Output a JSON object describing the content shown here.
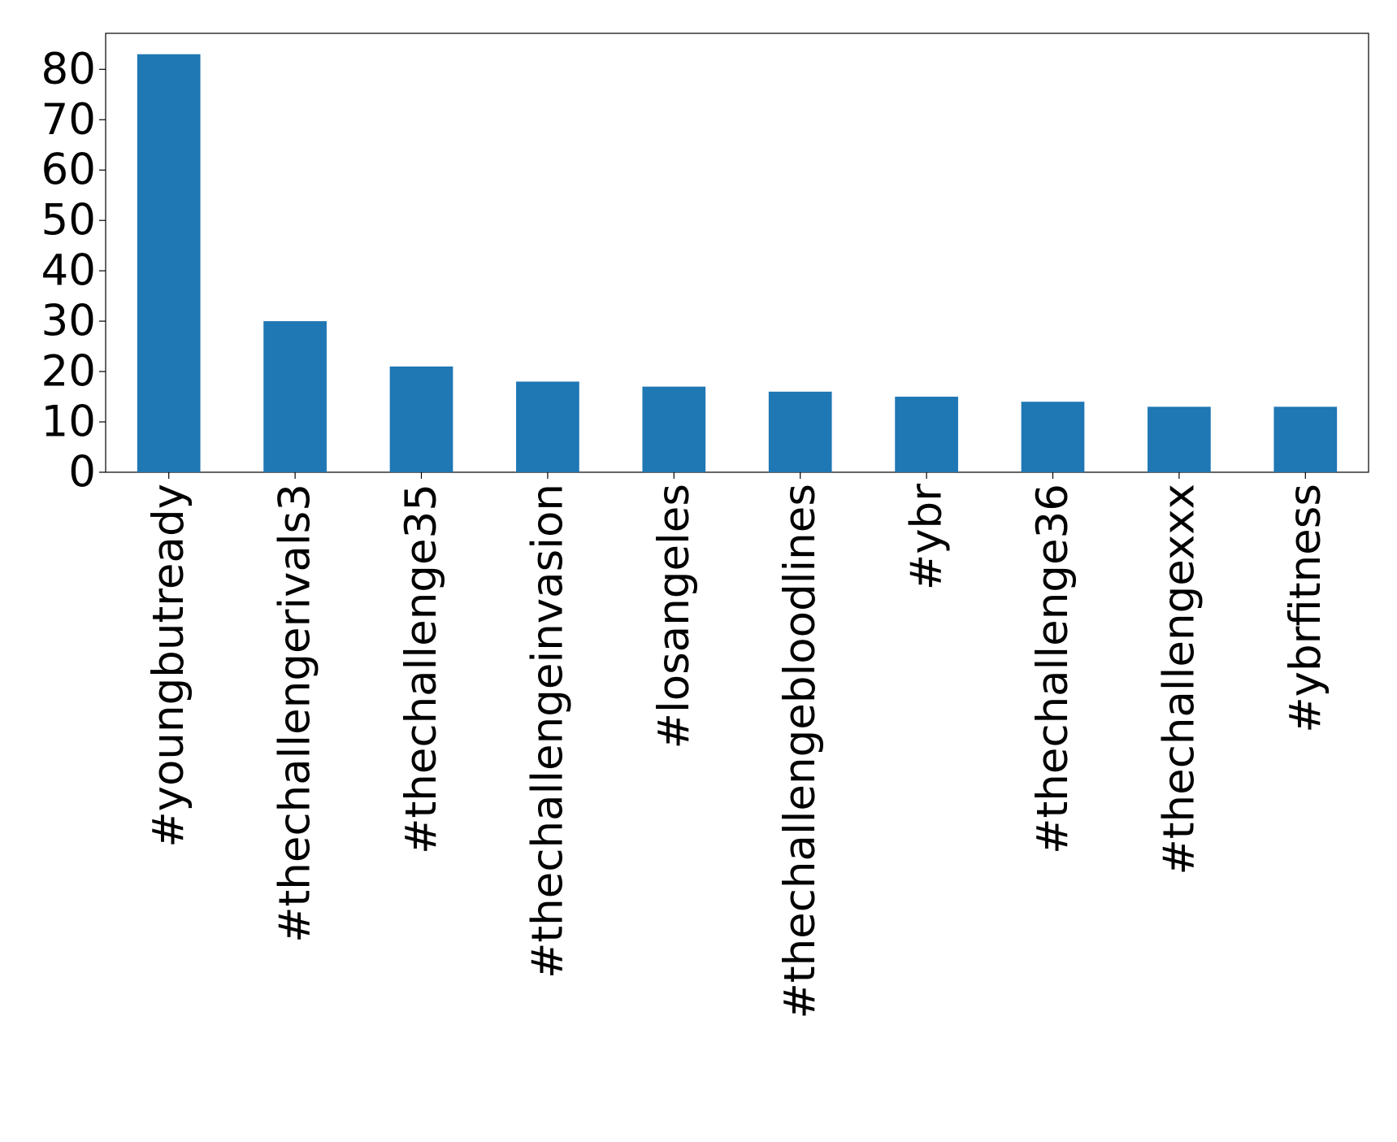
{
  "chart_data": {
    "type": "bar",
    "categories": [
      "#youngbutready",
      "#thechallengerivals3",
      "#thechallenge35",
      "#thechallengeinvasion",
      "#losangeles",
      "#thechallengebloodlines",
      "#ybr",
      "#thechallenge36",
      "#thechallengexxx",
      "#ybrfitness"
    ],
    "values": [
      83,
      30,
      21,
      18,
      17,
      16,
      15,
      14,
      13,
      13
    ],
    "color": "#1f77b4",
    "ylim": [
      0,
      87.15
    ],
    "yticks": [
      0,
      10,
      20,
      30,
      40,
      50,
      60,
      70,
      80
    ],
    "grid": false
  }
}
